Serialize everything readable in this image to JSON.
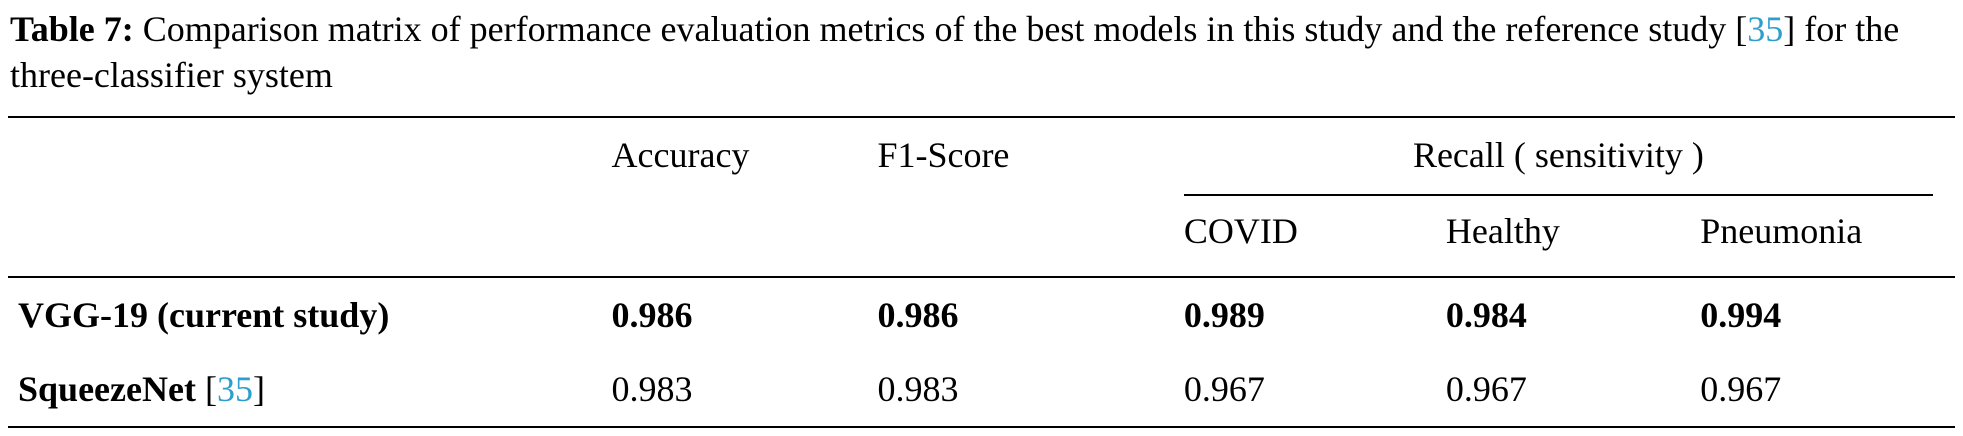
{
  "accent_color": "#2b9fcd",
  "caption": {
    "label": "Table 7:",
    "body_before": "Comparison matrix of performance evaluation metrics of the best models in this study and the reference study",
    "cite_open": "[",
    "cite": "35",
    "cite_close": "]",
    "body_after": "for the three-classifier system"
  },
  "table": {
    "col_headers": {
      "accuracy": "Accuracy",
      "f1": "F1-Score",
      "recall_group": "Recall ( sensitivity )",
      "recall_subs": [
        "COVID",
        "Healthy",
        "Pneumonia"
      ]
    },
    "rows": [
      {
        "label": "VGG-19 (current study)",
        "accuracy": "0.986",
        "f1": "0.986",
        "covid": "0.989",
        "healthy": "0.984",
        "pneumonia": "0.994"
      },
      {
        "label": "SqueezeNet",
        "cite_open": "[",
        "cite": "35",
        "cite_close": "]",
        "accuracy": "0.983",
        "f1": "0.983",
        "covid": "0.967",
        "healthy": "0.967",
        "pneumonia": "0.967"
      }
    ]
  }
}
